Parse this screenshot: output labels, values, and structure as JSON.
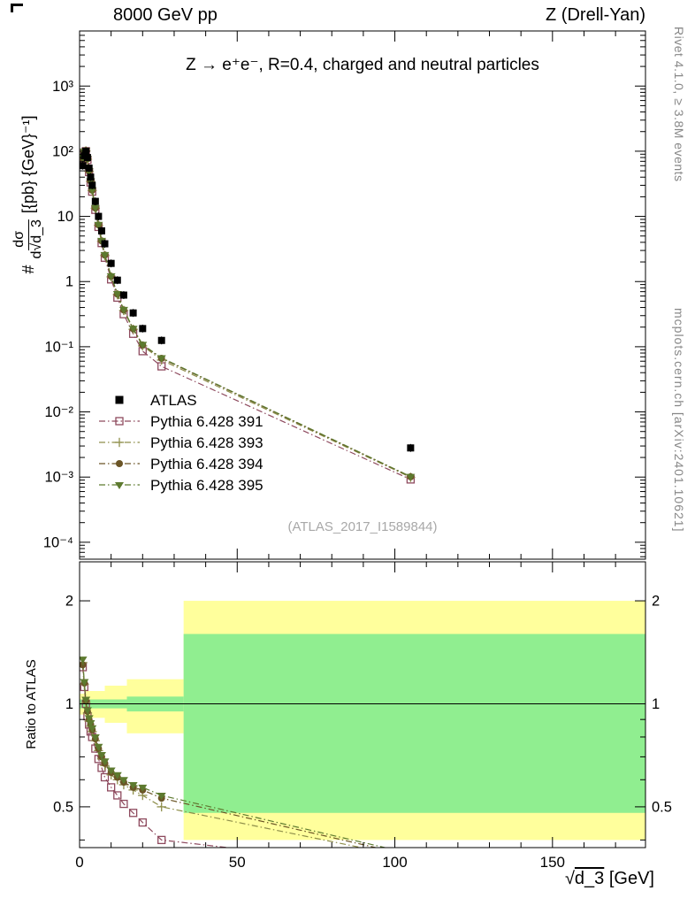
{
  "labels": {
    "header_left": "8000 GeV pp",
    "header_right": "Z (Drell-Yan)",
    "title": "Z → e⁺e⁻, R=0.4, charged and neutral particles",
    "watermark": "(ATLAS_2017_I1589844)",
    "rivet_note": "Rivet 4.1.0, ≥ 3.8M events",
    "mcplots_note": "mcplots.cern.ch [arXiv:2401.10621]",
    "ratio_ylabel": "Ratio to ATLAS",
    "y_prefix": "#",
    "y_numerator": "dσ",
    "y_den_pre": "d√",
    "y_den_arg": "d_3",
    "y_units": "[{pb} {GeV}⁻¹]",
    "x_sqrt": "√",
    "x_arg": "d_3",
    "x_units": " [GeV]"
  },
  "chart_data": {
    "type": "scatter",
    "title": "Z → e⁺e⁻, R=0.4, charged and neutral particles",
    "xlabel": "√d_3 [GeV]",
    "ylabel": "# dσ/d√d_3 [{pb} {GeV}⁻¹]",
    "ratio_ylabel": "Ratio to ATLAS",
    "legend_position": "middle-left",
    "ref_line": 1,
    "axes": {
      "xlim": [
        0,
        179.5
      ],
      "x_ticks": [
        0,
        50,
        100,
        150
      ],
      "x_minor_step": 10,
      "ylog": true,
      "ylim": [
        5.5e-05,
        7000
      ],
      "y_ticks": [
        {
          "v": 0.0001,
          "label": "10⁻⁴"
        },
        {
          "v": 0.001,
          "label": "10⁻³"
        },
        {
          "v": 0.01,
          "label": "10⁻²"
        },
        {
          "v": 0.1,
          "label": "10⁻¹"
        },
        {
          "v": 1,
          "label": "1"
        },
        {
          "v": 10,
          "label": "10"
        },
        {
          "v": 100,
          "label": "10²"
        },
        {
          "v": 1000,
          "label": "10³"
        }
      ],
      "ratio_ylog": true,
      "ratio_ylim": [
        0.38,
        2.6
      ],
      "ratio_ticks": [
        {
          "v": 0.5,
          "label": "0.5"
        },
        {
          "v": 1,
          "label": "1"
        },
        {
          "v": 2,
          "label": "2"
        }
      ],
      "ratio_minor_ticks": [
        0.4,
        0.6,
        0.7,
        0.8,
        0.9
      ],
      "ratio_marker_xmax": 30
    },
    "x": [
      1,
      1.5,
      2,
      2.5,
      3,
      3.5,
      4,
      5,
      6,
      7,
      8,
      10,
      12,
      14,
      17,
      20,
      26,
      105
    ],
    "series": [
      {
        "name": "ATLAS",
        "marker": "square-filled",
        "color": "#000000",
        "is_data": true,
        "err_frac": 0.15,
        "values": [
          60,
          85,
          100,
          80,
          55,
          40,
          30,
          17,
          10,
          6.0,
          3.8,
          1.9,
          1.05,
          0.62,
          0.33,
          0.19,
          0.125,
          0.0028
        ]
      },
      {
        "name": "Pythia 6.428 391",
        "marker": "square-open",
        "color": "#8e4a5e",
        "dash": "7 3 1.5 3",
        "values": [
          76.8,
          95.2,
          100,
          73.6,
          47.9,
          33.2,
          24.0,
          12.6,
          6.9,
          3.9,
          2.32,
          1.08,
          0.567,
          0.316,
          0.158,
          0.0855,
          0.05,
          0.00092
        ],
        "ratio": [
          1.28,
          1.12,
          1.0,
          0.92,
          0.87,
          0.83,
          0.8,
          0.74,
          0.69,
          0.65,
          0.61,
          0.57,
          0.54,
          0.51,
          0.48,
          0.45,
          0.4,
          0.33
        ]
      },
      {
        "name": "Pythia 6.428 393",
        "marker": "plus-open",
        "color": "#8e8e4a",
        "dash": "7 3 1.5 3",
        "values": [
          79.2,
          96.9,
          101,
          75.2,
          49.0,
          34.4,
          24.9,
          13.3,
          7.3,
          4.14,
          2.51,
          1.18,
          0.63,
          0.36,
          0.185,
          0.103,
          0.0625,
          0.00099
        ],
        "ratio": [
          1.32,
          1.14,
          1.01,
          0.94,
          0.89,
          0.86,
          0.83,
          0.78,
          0.73,
          0.69,
          0.66,
          0.62,
          0.6,
          0.58,
          0.56,
          0.54,
          0.5,
          0.355
        ]
      },
      {
        "name": "Pythia 6.428 394",
        "marker": "circle-filled",
        "color": "#6b5526",
        "dash": "7 3 1.5 3",
        "values": [
          78.0,
          97.8,
          102,
          76.0,
          49.5,
          34.8,
          25.2,
          13.4,
          7.4,
          4.2,
          2.55,
          1.2,
          0.641,
          0.366,
          0.188,
          0.106,
          0.0663,
          0.00101
        ],
        "ratio": [
          1.3,
          1.15,
          1.02,
          0.95,
          0.9,
          0.87,
          0.84,
          0.79,
          0.74,
          0.7,
          0.67,
          0.63,
          0.61,
          0.59,
          0.57,
          0.56,
          0.53,
          0.36
        ]
      },
      {
        "name": "Pythia 6.428 395",
        "marker": "triangle-down-filled",
        "color": "#5d7a2f",
        "dash": "7 3 1.5 3",
        "values": [
          81.0,
          98.6,
          103,
          76.8,
          50.1,
          35.2,
          25.5,
          13.6,
          7.5,
          4.26,
          2.58,
          1.22,
          0.651,
          0.372,
          0.191,
          0.108,
          0.0675,
          0.00102
        ],
        "ratio": [
          1.35,
          1.16,
          1.03,
          0.96,
          0.91,
          0.88,
          0.85,
          0.8,
          0.75,
          0.71,
          0.68,
          0.64,
          0.62,
          0.6,
          0.58,
          0.57,
          0.54,
          0.365
        ]
      }
    ],
    "bands": {
      "yellow": {
        "color": "#ffff9c",
        "segments": [
          [
            0,
            2,
            0.93,
            1.07
          ],
          [
            2,
            8,
            0.91,
            1.09
          ],
          [
            8,
            15,
            0.88,
            1.13
          ],
          [
            15,
            33,
            0.82,
            1.18
          ],
          [
            33,
            179.5,
            0.4,
            2.0
          ]
        ]
      },
      "green": {
        "color": "#90ee90",
        "segments": [
          [
            0,
            15,
            0.97,
            1.03
          ],
          [
            15,
            33,
            0.95,
            1.05
          ],
          [
            33,
            179.5,
            0.48,
            1.6
          ]
        ]
      }
    }
  }
}
